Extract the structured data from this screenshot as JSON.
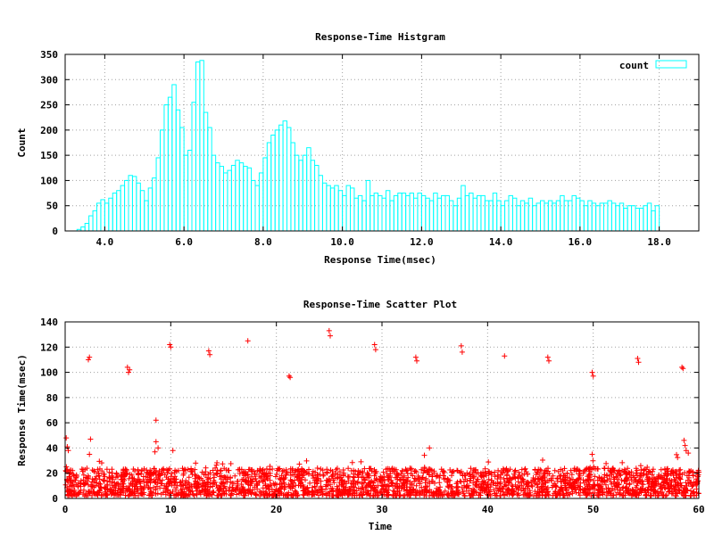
{
  "chart_data": [
    {
      "type": "bar",
      "title": "Response-Time Histgram",
      "xlabel": "Response Time(msec)",
      "ylabel": "Count",
      "xlim": [
        3.0,
        19.0
      ],
      "ylim": [
        0,
        350
      ],
      "xticks": [
        "4.0",
        "6.0",
        "8.0",
        "10.0",
        "12.0",
        "14.0",
        "16.0",
        "18.0"
      ],
      "xtick_values": [
        4,
        6,
        8,
        10,
        12,
        14,
        16,
        18
      ],
      "yticks": [
        0,
        50,
        100,
        150,
        200,
        250,
        300,
        350
      ],
      "grid": true,
      "legend_position": "top-right",
      "bin_start": 3.3,
      "bin_width": 0.1,
      "series": [
        {
          "name": "count",
          "color": "#00ffff",
          "values": [
            3,
            8,
            15,
            30,
            40,
            55,
            62,
            55,
            65,
            75,
            80,
            90,
            100,
            110,
            108,
            95,
            80,
            60,
            85,
            105,
            145,
            200,
            250,
            265,
            290,
            240,
            205,
            150,
            160,
            255,
            335,
            338,
            235,
            205,
            150,
            135,
            128,
            115,
            120,
            130,
            140,
            135,
            128,
            125,
            100,
            90,
            115,
            145,
            175,
            190,
            200,
            210,
            218,
            205,
            175,
            150,
            140,
            150,
            165,
            140,
            130,
            110,
            95,
            90,
            85,
            90,
            80,
            70,
            90,
            85,
            65,
            70,
            60,
            100,
            70,
            75,
            70,
            65,
            80,
            60,
            70,
            75,
            75,
            70,
            75,
            65,
            75,
            70,
            65,
            60,
            75,
            65,
            70,
            70,
            60,
            50,
            65,
            90,
            70,
            75,
            65,
            70,
            70,
            60,
            60,
            75,
            60,
            50,
            60,
            70,
            65,
            50,
            60,
            55,
            65,
            50,
            55,
            60,
            55,
            60,
            55,
            60,
            70,
            60,
            60,
            70,
            65,
            60,
            50,
            60,
            55,
            50,
            55,
            55,
            60,
            55,
            50,
            55,
            45,
            50,
            50,
            45,
            45,
            50,
            55,
            40,
            50
          ]
        }
      ]
    },
    {
      "type": "scatter",
      "title": "Response-Time Scatter Plot",
      "xlabel": "Time",
      "ylabel": "Response Time(msec)",
      "xlim": [
        0,
        60
      ],
      "ylim": [
        0,
        140
      ],
      "xticks": [
        0,
        10,
        20,
        30,
        40,
        50,
        60
      ],
      "yticks": [
        0,
        20,
        40,
        60,
        80,
        100,
        120,
        140
      ],
      "grid": true,
      "marker": "+",
      "color": "#ff0000",
      "dense_band": {
        "x_range": [
          0,
          60
        ],
        "y_range": [
          2,
          24
        ],
        "count": 2600
      },
      "outliers": [
        [
          0.1,
          48
        ],
        [
          0.2,
          41
        ],
        [
          0.3,
          38
        ],
        [
          2.2,
          110
        ],
        [
          2.3,
          112
        ],
        [
          2.4,
          47
        ],
        [
          2.3,
          35
        ],
        [
          5.9,
          104
        ],
        [
          6.0,
          100
        ],
        [
          6.1,
          102
        ],
        [
          8.6,
          62
        ],
        [
          8.6,
          45
        ],
        [
          8.8,
          40
        ],
        [
          8.5,
          37
        ],
        [
          9.9,
          122
        ],
        [
          10.0,
          120
        ],
        [
          10.2,
          38
        ],
        [
          13.6,
          117
        ],
        [
          13.7,
          114
        ],
        [
          17.3,
          125
        ],
        [
          21.2,
          97
        ],
        [
          21.3,
          96
        ],
        [
          25.0,
          133
        ],
        [
          25.1,
          129
        ],
        [
          29.3,
          122
        ],
        [
          29.4,
          118
        ],
        [
          33.2,
          112
        ],
        [
          33.3,
          109
        ],
        [
          34.5,
          40
        ],
        [
          37.5,
          121
        ],
        [
          37.6,
          116
        ],
        [
          41.6,
          113
        ],
        [
          45.7,
          112
        ],
        [
          45.8,
          109
        ],
        [
          49.9,
          100
        ],
        [
          50.0,
          97
        ],
        [
          49.9,
          35
        ],
        [
          54.2,
          111
        ],
        [
          54.3,
          108
        ],
        [
          58.4,
          104
        ],
        [
          58.5,
          103
        ],
        [
          58.6,
          46
        ],
        [
          58.7,
          42
        ],
        [
          58.8,
          38
        ],
        [
          59.0,
          36
        ]
      ]
    }
  ]
}
